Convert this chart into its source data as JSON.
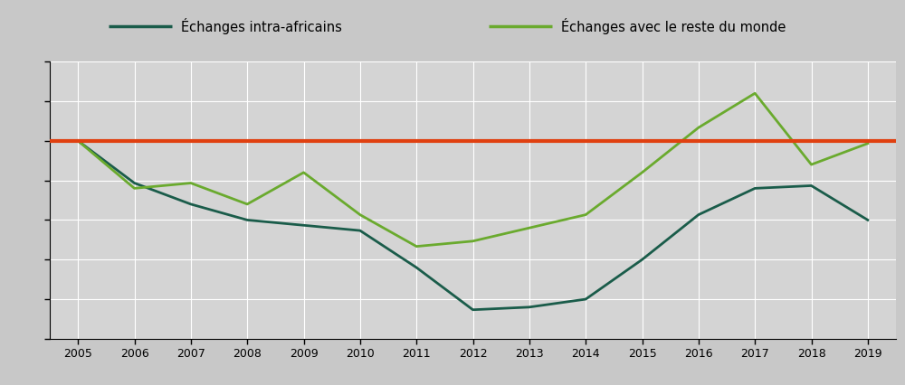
{
  "years": [
    2005,
    2006,
    2007,
    2008,
    2009,
    2010,
    2011,
    2012,
    2013,
    2014,
    2015,
    2016,
    2017,
    2018,
    2019
  ],
  "intra_african": [
    100,
    84,
    76,
    70,
    68,
    66,
    52,
    36,
    37,
    40,
    55,
    72,
    82,
    83,
    70
  ],
  "rest_of_world": [
    100,
    82,
    84,
    76,
    88,
    72,
    60,
    62,
    67,
    72,
    88,
    105,
    118,
    91,
    99
  ],
  "reference_line": 100,
  "color_intra": "#1a5c4a",
  "color_world": "#6aaa2e",
  "color_reference": "#e04010",
  "background_color": "#d4d4d4",
  "legend_label_intra": "Échanges intra-africains",
  "legend_label_world": "Échanges avec le reste du monde",
  "linewidth": 2.0,
  "ref_linewidth": 3.0,
  "ylim": [
    25,
    130
  ],
  "ytick_count": 8,
  "grid_color": "#ffffff",
  "outer_bg": "#c8c8c8",
  "legend_bg": "#c8c8c8"
}
